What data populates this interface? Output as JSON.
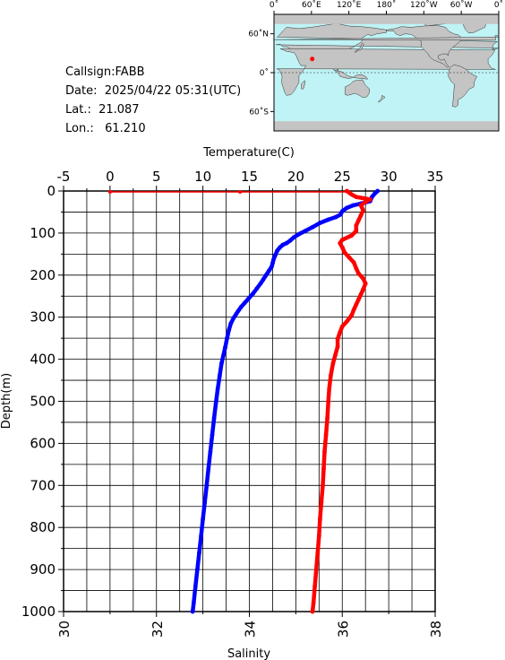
{
  "station": {
    "callsign": "Callsign:FABB",
    "date": "Date:  2025/04/22 05:31(UTC)",
    "lat": "Lat.:  21.087",
    "lon": "Lon.:   61.210"
  },
  "map": {
    "top_lon_labels": [
      "0˚",
      "60˚E",
      "120˚E",
      "180˚",
      "120˚W",
      "60˚W",
      "0˚"
    ],
    "right_lat_labels": [
      "60˚N",
      "0˚",
      "60˚S"
    ],
    "ocean_color": "#bff3f5",
    "land_color": "#c4c4c4",
    "marker_color": "#ff0000"
  },
  "chart_data": {
    "type": "line",
    "xlabel_top": "Temperature(C)",
    "xlabel_bottom": "Salinity",
    "ylabel": "Depth(m)",
    "temperature_ticks": [
      "-5",
      "0",
      "5",
      "10",
      "15",
      "20",
      "25",
      "30",
      "35"
    ],
    "salinity_ticks": [
      "30",
      "32",
      "34",
      "36",
      "38"
    ],
    "depth_ticks": [
      "0",
      "100",
      "200",
      "300",
      "400",
      "500",
      "600",
      "700",
      "800",
      "900",
      "1000"
    ],
    "temperature_range": [
      -5,
      35
    ],
    "salinity_range": [
      30,
      38
    ],
    "depth_range": [
      0,
      1000
    ],
    "grid": true,
    "series": [
      {
        "quantity": "temperature",
        "color": "#0000ff",
        "points": [
          [
            28.8,
            0
          ],
          [
            28.5,
            6
          ],
          [
            28.2,
            14
          ],
          [
            28.0,
            24
          ],
          [
            27.0,
            30
          ],
          [
            26.2,
            34
          ],
          [
            25.5,
            40
          ],
          [
            25.0,
            48
          ],
          [
            24.8,
            56
          ],
          [
            24.3,
            62
          ],
          [
            23.5,
            68
          ],
          [
            22.6,
            76
          ],
          [
            21.8,
            86
          ],
          [
            21.0,
            95
          ],
          [
            20.3,
            103
          ],
          [
            19.8,
            110
          ],
          [
            19.4,
            118
          ],
          [
            19.0,
            124
          ],
          [
            18.6,
            128
          ],
          [
            18.3,
            134
          ],
          [
            18.0,
            142
          ],
          [
            17.8,
            152
          ],
          [
            17.6,
            163
          ],
          [
            17.5,
            172
          ],
          [
            17.4,
            180
          ],
          [
            17.1,
            190
          ],
          [
            16.8,
            200
          ],
          [
            16.5,
            210
          ],
          [
            16.2,
            220
          ],
          [
            15.8,
            232
          ],
          [
            15.4,
            244
          ],
          [
            14.9,
            256
          ],
          [
            14.5,
            266
          ],
          [
            14.1,
            276
          ],
          [
            13.8,
            285
          ],
          [
            13.6,
            292
          ],
          [
            13.3,
            302
          ],
          [
            13.0,
            315
          ],
          [
            12.8,
            330
          ],
          [
            12.6,
            350
          ],
          [
            12.4,
            372
          ],
          [
            12.2,
            392
          ],
          [
            12.0,
            410
          ],
          [
            11.8,
            440
          ],
          [
            11.6,
            470
          ],
          [
            11.4,
            505
          ],
          [
            11.2,
            540
          ],
          [
            11.0,
            580
          ],
          [
            10.8,
            620
          ],
          [
            10.6,
            660
          ],
          [
            10.4,
            700
          ],
          [
            10.2,
            740
          ],
          [
            10.0,
            780
          ],
          [
            9.8,
            820
          ],
          [
            9.6,
            860
          ],
          [
            9.4,
            900
          ],
          [
            9.2,
            940
          ],
          [
            9.0,
            980
          ],
          [
            8.9,
            1000
          ]
        ]
      },
      {
        "quantity": "salinity",
        "color": "#ff0000",
        "points": [
          [
            36.1,
            0
          ],
          [
            36.2,
            8
          ],
          [
            36.3,
            14
          ],
          [
            36.6,
            20
          ],
          [
            36.5,
            26
          ],
          [
            36.4,
            34
          ],
          [
            36.45,
            46
          ],
          [
            36.4,
            58
          ],
          [
            36.35,
            70
          ],
          [
            36.3,
            82
          ],
          [
            36.3,
            95
          ],
          [
            36.2,
            106
          ],
          [
            36.0,
            116
          ],
          [
            35.95,
            124
          ],
          [
            36.0,
            134
          ],
          [
            36.05,
            146
          ],
          [
            36.15,
            158
          ],
          [
            36.25,
            170
          ],
          [
            36.3,
            184
          ],
          [
            36.35,
            196
          ],
          [
            36.45,
            208
          ],
          [
            36.5,
            220
          ],
          [
            36.45,
            234
          ],
          [
            36.4,
            246
          ],
          [
            36.35,
            258
          ],
          [
            36.3,
            270
          ],
          [
            36.25,
            282
          ],
          [
            36.2,
            296
          ],
          [
            36.1,
            310
          ],
          [
            36.0,
            322
          ],
          [
            35.95,
            336
          ],
          [
            35.9,
            352
          ],
          [
            35.9,
            370
          ],
          [
            35.85,
            390
          ],
          [
            35.8,
            410
          ],
          [
            35.75,
            440
          ],
          [
            35.72,
            470
          ],
          [
            35.7,
            500
          ],
          [
            35.68,
            540
          ],
          [
            35.65,
            580
          ],
          [
            35.62,
            620
          ],
          [
            35.6,
            660
          ],
          [
            35.58,
            700
          ],
          [
            35.55,
            740
          ],
          [
            35.52,
            780
          ],
          [
            35.5,
            820
          ],
          [
            35.47,
            860
          ],
          [
            35.44,
            900
          ],
          [
            35.41,
            940
          ],
          [
            35.38,
            980
          ],
          [
            35.36,
            1000
          ]
        ]
      }
    ],
    "surface_marks": {
      "color": "#ff0000",
      "temperature_values": [
        0,
        14
      ]
    }
  }
}
